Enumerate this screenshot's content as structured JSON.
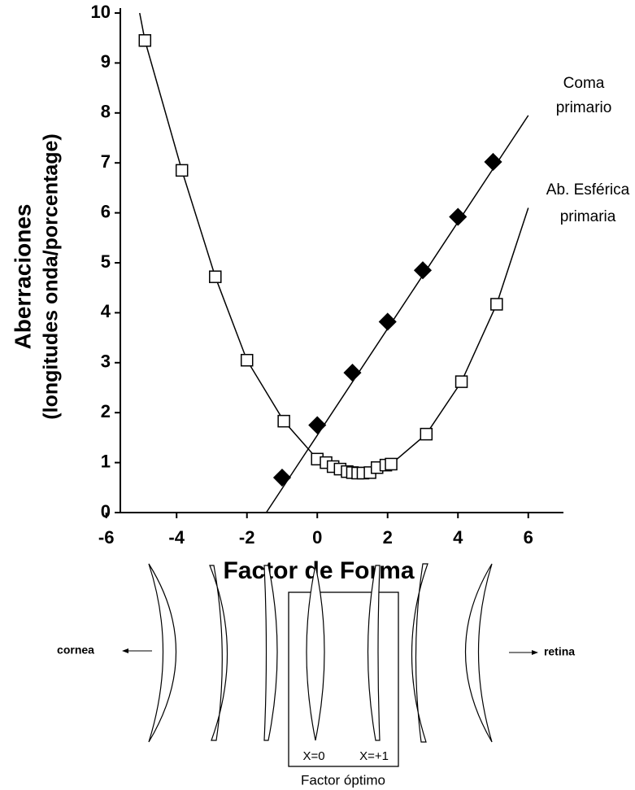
{
  "chart_data": {
    "type": "line",
    "xlabel": "Factor de Forma",
    "ylabel": [
      "Aberraciones",
      "(longitudes onda/porcentage)"
    ],
    "xlim": [
      -5.6,
      7
    ],
    "ylim": [
      0,
      10
    ],
    "xticks": [
      -6,
      -4,
      -2,
      0,
      2,
      4,
      6
    ],
    "yticks": [
      0,
      1,
      2,
      3,
      4,
      5,
      6,
      7,
      8,
      9,
      10
    ],
    "series": [
      {
        "name": [
          "Coma",
          "primario"
        ],
        "color": "#000000",
        "marker": "diamond",
        "marker_fill": "#000000",
        "x": [
          -1,
          0,
          1,
          2,
          3,
          4,
          5
        ],
        "values": [
          0.7,
          1.75,
          2.8,
          3.82,
          4.85,
          5.92,
          7.02
        ],
        "curve_x": [
          -1.45,
          6.0
        ],
        "curve_values": [
          0,
          7.95
        ]
      },
      {
        "name": [
          "Ab. Esférica",
          "primaria"
        ],
        "color": "#000000",
        "marker": "square",
        "marker_fill": "#ffffff",
        "x": [
          -4.9,
          -3.85,
          -2.9,
          -2,
          -0.95,
          0,
          0.25,
          0.45,
          0.65,
          0.85,
          1.0,
          1.15,
          1.3,
          1.5,
          1.7,
          1.95,
          2.1,
          3.1,
          4.1,
          5.1
        ],
        "values": [
          9.45,
          6.85,
          4.72,
          3.05,
          1.83,
          1.07,
          1.0,
          0.92,
          0.87,
          0.82,
          0.8,
          0.79,
          0.79,
          0.8,
          0.9,
          0.95,
          0.97,
          1.57,
          2.62,
          4.17
        ],
        "curve_x": [
          -5.05,
          -4.9,
          -3.85,
          -2.9,
          -2,
          -0.95,
          0,
          0.5,
          1,
          1.5,
          2.1,
          3.1,
          4.1,
          5.1,
          6.0
        ],
        "curve_values": [
          10,
          9.45,
          6.85,
          4.72,
          3.05,
          1.83,
          1.07,
          0.9,
          0.8,
          0.8,
          0.97,
          1.57,
          2.62,
          4.17,
          6.1
        ]
      }
    ]
  },
  "lens_diagram": {
    "left_label": "cornea",
    "right_label": "retina",
    "box_labels": [
      "X=0",
      "X=+1"
    ],
    "box_caption": "Factor óptimo"
  }
}
